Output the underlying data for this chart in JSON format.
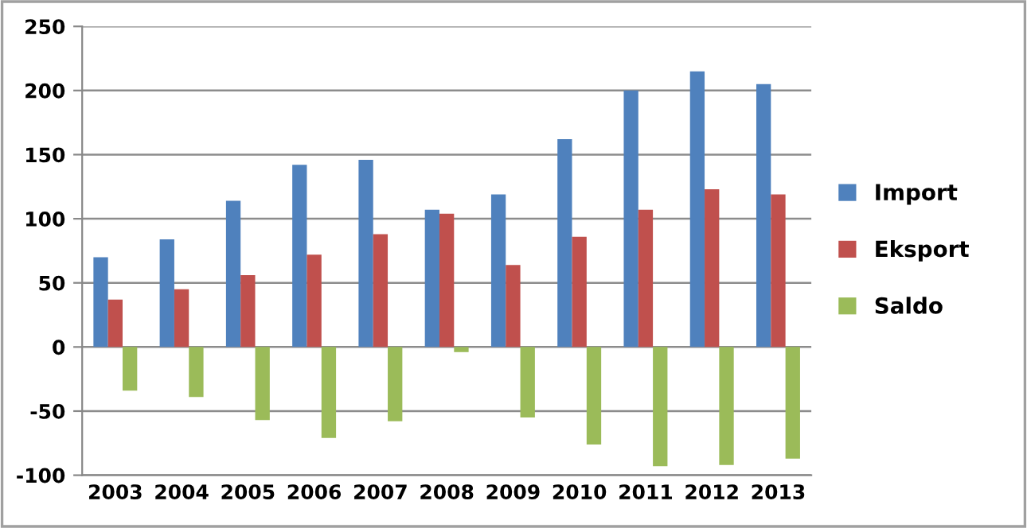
{
  "chart_data": {
    "type": "bar",
    "categories": [
      "2003",
      "2004",
      "2005",
      "2006",
      "2007",
      "2008",
      "2009",
      "2010",
      "2011",
      "2012",
      "2013"
    ],
    "series": [
      {
        "name": "Import",
        "color": "#4f81bd",
        "values": [
          70,
          84,
          114,
          142,
          146,
          107,
          119,
          162,
          200,
          215,
          205
        ]
      },
      {
        "name": "Eksport",
        "color": "#c0504d",
        "values": [
          37,
          45,
          56,
          72,
          88,
          104,
          64,
          86,
          107,
          123,
          119
        ]
      },
      {
        "name": "Saldo",
        "color": "#9bbb59",
        "values": [
          -34,
          -39,
          -57,
          -71,
          -58,
          -4,
          -55,
          -76,
          -93,
          -92,
          -87
        ]
      }
    ],
    "ylim": [
      -100,
      250
    ],
    "yticks": [
      -100,
      -50,
      0,
      50,
      100,
      150,
      200,
      250
    ],
    "grid": "y",
    "legend": "right"
  }
}
